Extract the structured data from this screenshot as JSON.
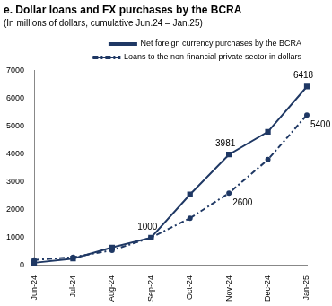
{
  "chart_data": {
    "type": "line",
    "title": "e. Dollar loans and FX purchases by the BCRA",
    "subtitle": "(In millions of dollars, cumulative Jun.24 – Jan.25)",
    "categories": [
      "Jun-24",
      "Jul-24",
      "Aug-24",
      "Sep-24",
      "Oct-24",
      "Nov-24",
      "Dec-24",
      "Jan-25"
    ],
    "series": [
      {
        "name": "Net foreign currency purchases by the BCRA",
        "color": "#1f3864",
        "marker": "square",
        "line_style": "solid",
        "values": [
          100,
          250,
          650,
          1000,
          2550,
          3981,
          4800,
          6418
        ],
        "value_labels": [
          null,
          null,
          null,
          "1000",
          null,
          "3981",
          null,
          "6418"
        ]
      },
      {
        "name": "Loans to the non-financial private sector in dollars",
        "color": "#1f3864",
        "marker": "circle",
        "line_style": "dashdot",
        "values": [
          200,
          300,
          550,
          1000,
          1700,
          2600,
          3800,
          5400
        ],
        "value_labels": [
          null,
          null,
          null,
          null,
          null,
          "2600",
          null,
          "5400"
        ]
      }
    ],
    "ylim": [
      0,
      7000
    ],
    "yticks": [
      0,
      1000,
      2000,
      3000,
      4000,
      5000,
      6000,
      7000
    ],
    "grid": false,
    "legend": "top",
    "data_labels": true
  }
}
